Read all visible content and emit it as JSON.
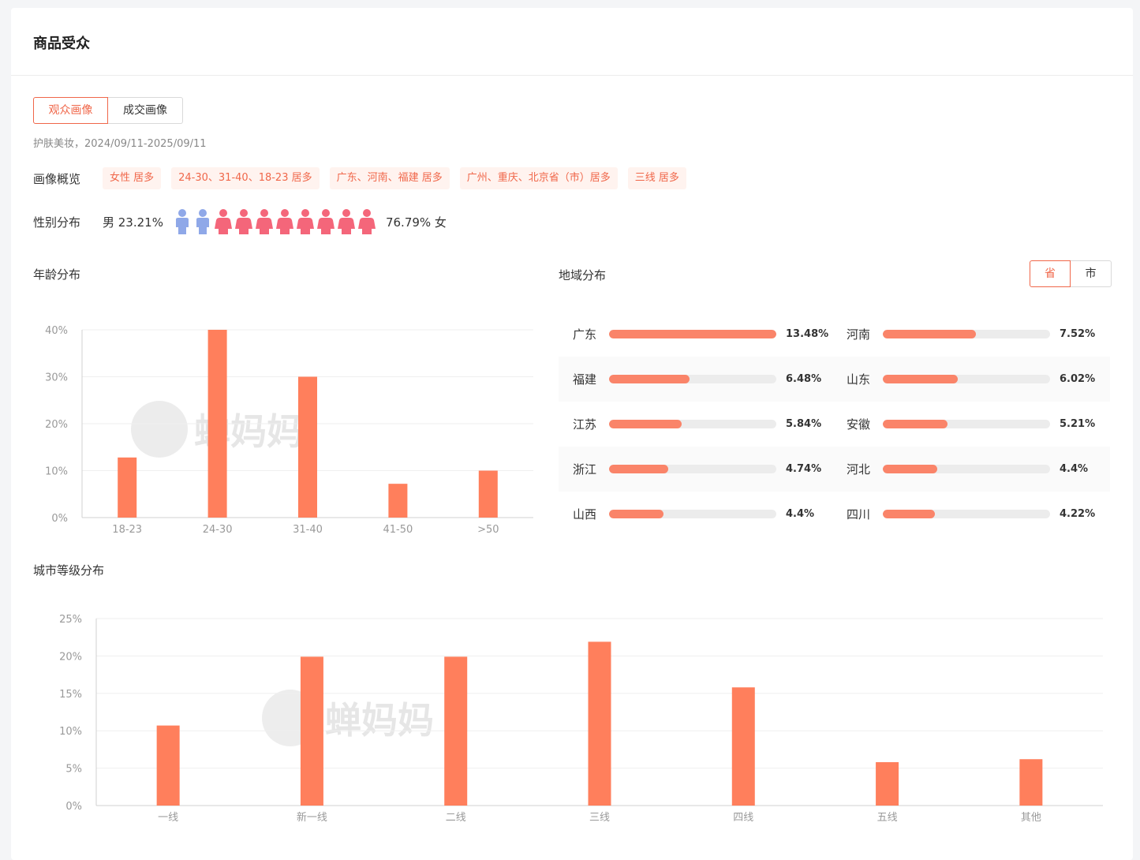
{
  "header": {
    "title": "商品受众"
  },
  "tabs": [
    {
      "label": "观众画像",
      "active": true
    },
    {
      "label": "成交画像",
      "active": false
    }
  ],
  "subtitle": "护肤美妆，2024/09/11-2025/09/11",
  "overview": {
    "label": "画像概览",
    "tags": [
      "女性 居多",
      "24-30、31-40、18-23 居多",
      "广东、河南、福建 居多",
      "广州、重庆、北京省（市）居多",
      "三线 居多"
    ]
  },
  "gender": {
    "label": "性别分布",
    "male_text": "男 23.21%",
    "female_text": "76.79% 女",
    "male": 23.21,
    "female": 76.79,
    "icons": {
      "male_count": 2,
      "female_count": 8,
      "male_color": "#8fa8e8",
      "female_color": "#f4667a"
    }
  },
  "age": {
    "title": "年龄分布"
  },
  "region": {
    "title": "地域分布",
    "toggle": [
      {
        "label": "省",
        "active": true
      },
      {
        "label": "市",
        "active": false
      }
    ],
    "items": [
      {
        "name": "广东",
        "value": 13.48,
        "label": "13.48%"
      },
      {
        "name": "河南",
        "value": 7.52,
        "label": "7.52%"
      },
      {
        "name": "福建",
        "value": 6.48,
        "label": "6.48%"
      },
      {
        "name": "山东",
        "value": 6.02,
        "label": "6.02%"
      },
      {
        "name": "江苏",
        "value": 5.84,
        "label": "5.84%"
      },
      {
        "name": "安徽",
        "value": 5.21,
        "label": "5.21%"
      },
      {
        "name": "浙江",
        "value": 4.74,
        "label": "4.74%"
      },
      {
        "name": "河北",
        "value": 4.4,
        "label": "4.4%"
      },
      {
        "name": "山西",
        "value": 4.4,
        "label": "4.4%"
      },
      {
        "name": "四川",
        "value": 4.22,
        "label": "4.22%"
      }
    ]
  },
  "city": {
    "title": "城市等级分布"
  },
  "watermark": "蝉妈妈",
  "colors": {
    "accent": "#f0674a",
    "bar": "#ff7f5c",
    "track": "#ececec"
  },
  "chart_data": [
    {
      "type": "bar",
      "title": "年龄分布",
      "categories": [
        "18-23",
        "24-30",
        "31-40",
        "41-50",
        ">50"
      ],
      "values": [
        12.8,
        40,
        30,
        7.2,
        10
      ],
      "ylim": [
        0,
        40
      ],
      "yticks": [
        "0%",
        "10%",
        "20%",
        "30%",
        "40%"
      ],
      "grid": true
    },
    {
      "type": "bar",
      "title": "城市等级分布",
      "categories": [
        "一线",
        "新一线",
        "二线",
        "三线",
        "四线",
        "五线",
        "其他"
      ],
      "values": [
        10.7,
        19.9,
        19.9,
        21.9,
        15.8,
        5.8,
        6.2
      ],
      "ylim": [
        0,
        25
      ],
      "yticks": [
        "0%",
        "5%",
        "10%",
        "15%",
        "20%",
        "25%"
      ],
      "grid": true
    }
  ]
}
